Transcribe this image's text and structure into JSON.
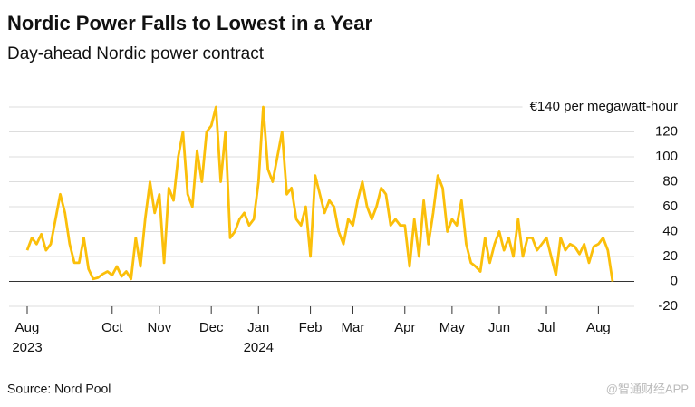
{
  "chart_data": {
    "type": "line",
    "title": "Nordic Power Falls to Lowest in a Year",
    "subtitle": "Day-ahead Nordic power contract",
    "source": "Source: Nord Pool",
    "watermark": "@智通财经APP",
    "categories": [
      "Aug 2023",
      null,
      null,
      null,
      null,
      null,
      null,
      null,
      null,
      null,
      null,
      null,
      null,
      null,
      null,
      null,
      null,
      null,
      "Oct",
      null,
      null,
      null,
      null,
      null,
      null,
      null,
      null,
      null,
      "Nov",
      null,
      null,
      null,
      null,
      null,
      null,
      null,
      null,
      null,
      null,
      "Dec",
      null,
      null,
      null,
      null,
      null,
      null,
      null,
      null,
      null,
      "Jan 2024",
      null,
      null,
      null,
      null,
      null,
      null,
      null,
      null,
      null,
      null,
      "Feb",
      null,
      null,
      null,
      null,
      null,
      null,
      null,
      null,
      "Mar",
      null,
      null,
      null,
      null,
      null,
      null,
      null,
      null,
      null,
      null,
      "Apr",
      null,
      null,
      null,
      null,
      null,
      null,
      null,
      null,
      null,
      "May",
      null,
      null,
      null,
      null,
      null,
      null,
      null,
      null,
      null,
      "Jun",
      null,
      null,
      null,
      null,
      null,
      null,
      null,
      null,
      null,
      "Jul",
      null,
      null,
      null,
      null,
      null,
      null,
      null,
      null,
      null,
      null,
      "Aug",
      null,
      null,
      null
    ],
    "series": [
      {
        "name": "Day-ahead Nordic power contract",
        "color": "#fbbf0a",
        "values": [
          25,
          35,
          30,
          38,
          25,
          30,
          50,
          70,
          55,
          30,
          15,
          15,
          35,
          10,
          2,
          3,
          6,
          8,
          5,
          12,
          4,
          8,
          2,
          35,
          12,
          50,
          80,
          55,
          70,
          15,
          75,
          65,
          100,
          120,
          70,
          60,
          105,
          80,
          120,
          125,
          140,
          80,
          120,
          35,
          40,
          50,
          55,
          45,
          50,
          80,
          140,
          90,
          80,
          100,
          120,
          70,
          75,
          50,
          45,
          60,
          20,
          85,
          70,
          55,
          65,
          60,
          40,
          30,
          50,
          45,
          65,
          80,
          60,
          50,
          60,
          75,
          70,
          45,
          50,
          45,
          45,
          12,
          50,
          20,
          65,
          30,
          55,
          85,
          75,
          40,
          50,
          45,
          65,
          30,
          15,
          12,
          8,
          35,
          15,
          30,
          40,
          25,
          35,
          20,
          50,
          20,
          35,
          35,
          25,
          30,
          35,
          20,
          5,
          35,
          25,
          30,
          28,
          22,
          30,
          15,
          28,
          30,
          35,
          25,
          0
        ]
      }
    ],
    "ylim": [
      -20,
      140
    ],
    "yticks": [
      -20,
      0,
      20,
      40,
      60,
      80,
      100,
      120,
      {
        "value": 140,
        "label": "€140 per megawatt-hour"
      }
    ],
    "grid": true
  }
}
